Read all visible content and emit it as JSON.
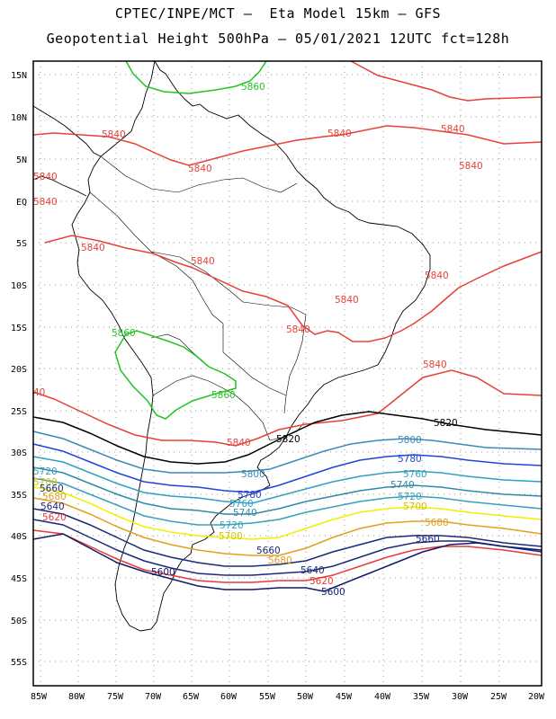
{
  "header": {
    "line1": "CPTEC/INPE/MCT –  Eta Model 15km – GFS",
    "line2": "Geopotential Height 500hPa – 05/01/2021 12UTC fct=128h"
  },
  "axes": {
    "lon_labels": [
      "85W",
      "80W",
      "75W",
      "70W",
      "65W",
      "60W",
      "55W",
      "50W",
      "45W",
      "40W",
      "35W",
      "30W",
      "25W",
      "20W"
    ],
    "lat_labels": [
      "15N",
      "10N",
      "5N",
      "EQ",
      "5S",
      "10S",
      "15S",
      "20S",
      "25S",
      "30S",
      "35S",
      "40S",
      "45S",
      "50S",
      "55S"
    ]
  },
  "colors": {
    "c5860": "#22c422",
    "c5840": "#e8403a",
    "c5820": "#000000",
    "c5800": "#3a8ab8",
    "c5780": "#1f45d8",
    "c5760": "#2fa0c0",
    "c5740": "#2f8aa8",
    "c5720": "#3aa0b8",
    "c5700": "#f0f000",
    "c5680": "#e0a020",
    "c5660": "#1a2a78",
    "c5640": "#1a2a78",
    "c5620": "#e83a3a",
    "c5600": "#101a6a"
  },
  "contour_labels": {
    "l5860a": "5860",
    "l5860b": "5860",
    "l5860c": "5860",
    "l5840a": "5840",
    "l5840b": "5840",
    "l5840c": "5840",
    "l5840d": "5840",
    "l5840e": "5840",
    "l5840f": "5840",
    "l5840g": "5840",
    "l5840h": "5840",
    "l5840i": "5840",
    "l5840j": "5840",
    "l5840k": "5840",
    "l5840l": "5840",
    "l5840m": "5840",
    "l5840n": "40",
    "l5820a": "5820",
    "l5820b": "5820",
    "l5800a": "5800",
    "l5800b": "5800",
    "l5780a": "5780",
    "l5780b": "5780",
    "l5760a": "5760",
    "l5760b": "5760",
    "l5740a": "5740",
    "l5740b": "5740",
    "l5720a": "5720",
    "l5720b": "5720",
    "l5720c": "5720",
    "l5700a": "5700",
    "l5700b": "5700",
    "l5700c": "5700",
    "l5680a": "5680",
    "l5680b": "5680",
    "l5680c": "5680",
    "l5660a": "5660",
    "l5660b": "5660",
    "l5660c": "5660",
    "l5640a": "5640",
    "l5640b": "5640",
    "l5620a": "5620",
    "l5620b": "5620",
    "l5600a": "5600",
    "l5600b": "5600"
  }
}
